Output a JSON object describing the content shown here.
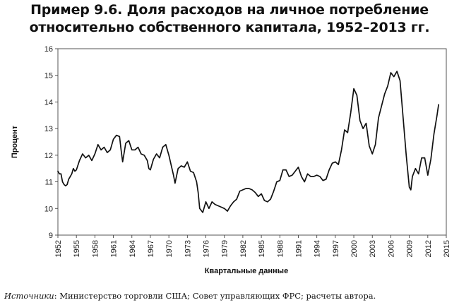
{
  "title_lines": [
    "Пример 9.6. Доля расходов на личное потребление",
    "относительно собственного капитала, 1952–2013 гг."
  ],
  "source": {
    "lead": "Источники",
    "text": ": Министерство торговли США; Совет управляющих ФРС; расчеты автора."
  },
  "chart_data": {
    "type": "line",
    "title": "Пример 9.6. Доля расходов на личное потребление относительно собственного капитала, 1952–2013 гг.",
    "xlabel": "Квартальные данные",
    "ylabel": "Процент",
    "xlim": [
      1952,
      2015
    ],
    "ylim": [
      9,
      16
    ],
    "x_ticks": [
      1952,
      1955,
      1958,
      1961,
      1964,
      1967,
      1970,
      1973,
      1976,
      1979,
      1982,
      1985,
      1988,
      1991,
      1994,
      1997,
      2000,
      2003,
      2006,
      2009,
      2012,
      2015
    ],
    "y_ticks": [
      9,
      10,
      11,
      12,
      13,
      14,
      15,
      16
    ],
    "grid": false,
    "legend": "none",
    "line_color": "#111111",
    "series": [
      {
        "x": [
          1952.0,
          1952.25,
          1952.5,
          1952.75,
          1953.0,
          1953.25,
          1953.5,
          1953.75,
          1954.0,
          1954.25,
          1954.5,
          1954.75,
          1955.0,
          1955.5,
          1956.0,
          1956.5,
          1957.0,
          1957.5,
          1958.0,
          1958.5,
          1959.0,
          1959.5,
          1960.0,
          1960.5,
          1961.0,
          1961.5,
          1962.0,
          1962.25,
          1962.5,
          1962.75,
          1963.0,
          1963.5,
          1964.0,
          1964.5,
          1965.0,
          1965.5,
          1966.0,
          1966.5,
          1966.75,
          1967.0,
          1967.5,
          1968.0,
          1968.5,
          1969.0,
          1969.5,
          1970.0,
          1970.5,
          1970.75,
          1971.0,
          1971.5,
          1972.0,
          1972.5,
          1973.0,
          1973.5,
          1974.0,
          1974.5,
          1974.75,
          1975.0,
          1975.5,
          1976.0,
          1976.5,
          1977.0,
          1977.5,
          1978.0,
          1978.5,
          1979.0,
          1979.5,
          1980.0,
          1980.5,
          1981.0,
          1981.5,
          1982.0,
          1982.5,
          1983.0,
          1983.5,
          1984.0,
          1984.5,
          1985.0,
          1985.5,
          1986.0,
          1986.5,
          1987.0,
          1987.5,
          1988.0,
          1988.5,
          1989.0,
          1989.5,
          1990.0,
          1990.5,
          1991.0,
          1991.5,
          1992.0,
          1992.5,
          1993.0,
          1993.5,
          1994.0,
          1994.5,
          1995.0,
          1995.5,
          1996.0,
          1996.5,
          1997.0,
          1997.5,
          1998.0,
          1998.5,
          1999.0,
          1999.5,
          2000.0,
          2000.5,
          2001.0,
          2001.5,
          2002.0,
          2002.5,
          2003.0,
          2003.5,
          2004.0,
          2004.5,
          2005.0,
          2005.5,
          2006.0,
          2006.5,
          2007.0,
          2007.5,
          2008.0,
          2008.5,
          2009.0,
          2009.25,
          2009.5,
          2010.0,
          2010.5,
          2011.0,
          2011.5,
          2012.0,
          2012.5,
          2013.0,
          2013.5,
          2013.75
        ],
        "y": [
          11.4,
          11.3,
          11.3,
          11.0,
          10.9,
          10.85,
          10.9,
          11.1,
          11.2,
          11.3,
          11.5,
          11.4,
          11.45,
          11.8,
          12.05,
          11.9,
          12.0,
          11.8,
          12.05,
          12.4,
          12.2,
          12.3,
          12.1,
          12.2,
          12.6,
          12.75,
          12.7,
          12.2,
          11.75,
          12.1,
          12.45,
          12.55,
          12.2,
          12.2,
          12.3,
          12.05,
          12.0,
          11.8,
          11.5,
          11.45,
          11.85,
          12.05,
          11.9,
          12.3,
          12.4,
          12.0,
          11.5,
          11.25,
          10.95,
          11.5,
          11.6,
          11.55,
          11.75,
          11.4,
          11.35,
          11.0,
          10.6,
          10.0,
          9.85,
          10.25,
          10.0,
          10.25,
          10.15,
          10.1,
          10.05,
          10.0,
          9.9,
          10.1,
          10.25,
          10.35,
          10.65,
          10.7,
          10.75,
          10.75,
          10.7,
          10.6,
          10.45,
          10.55,
          10.3,
          10.25,
          10.35,
          10.65,
          11.0,
          11.05,
          11.45,
          11.45,
          11.2,
          11.25,
          11.4,
          11.55,
          11.2,
          11.0,
          11.3,
          11.2,
          11.2,
          11.25,
          11.2,
          11.05,
          11.1,
          11.45,
          11.7,
          11.75,
          11.65,
          12.2,
          12.95,
          12.85,
          13.6,
          14.5,
          14.25,
          13.3,
          13.0,
          13.2,
          12.35,
          12.05,
          12.4,
          13.4,
          13.85,
          14.3,
          14.6,
          15.1,
          14.95,
          15.15,
          14.8,
          13.4,
          12.0,
          10.8,
          10.7,
          11.2,
          11.5,
          11.3,
          11.9,
          11.9,
          11.25,
          11.85,
          12.8,
          13.5,
          13.9
        ]
      }
    ]
  }
}
